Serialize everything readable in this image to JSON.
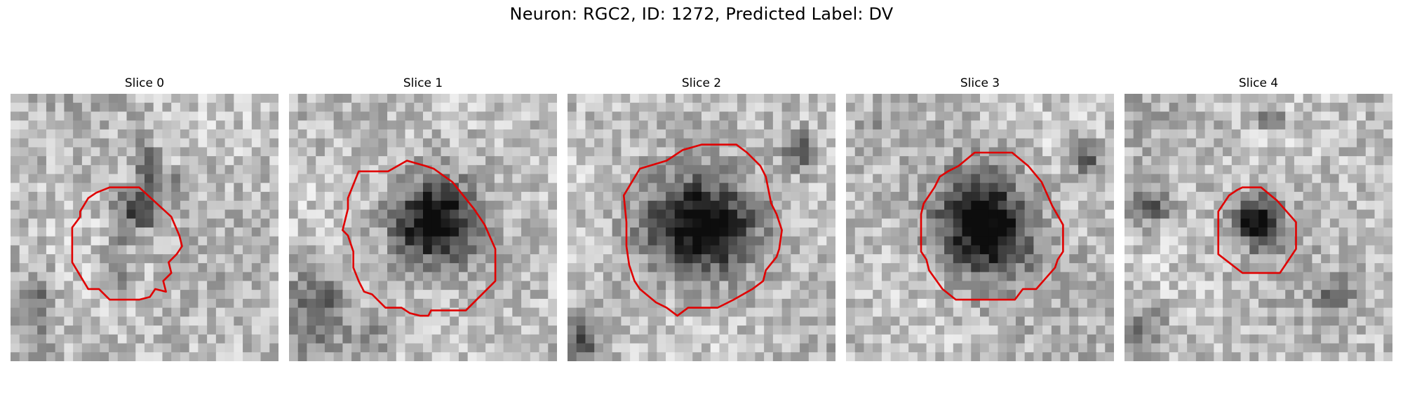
{
  "title": "Neuron: RGC2, ID: 1272, Predicted Label: DV",
  "panels": [
    {
      "title": "Slice 0"
    },
    {
      "title": "Slice 1"
    },
    {
      "title": "Slice 2"
    },
    {
      "title": "Slice 3"
    },
    {
      "title": "Slice 4"
    }
  ],
  "colors": {
    "contour": "#e00000",
    "background": "#ffffff"
  }
}
